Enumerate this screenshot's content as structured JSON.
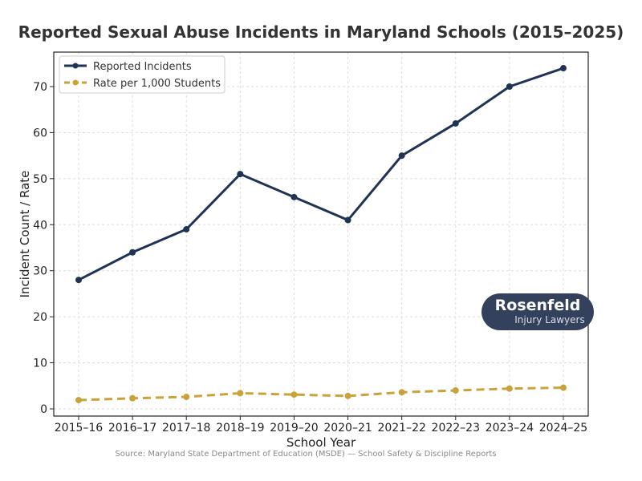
{
  "chart_data": {
    "type": "line",
    "title": "Reported Sexual Abuse Incidents in Maryland Schools (2015–2025)",
    "xlabel": "School Year",
    "ylabel": "Incident Count / Rate",
    "categories": [
      "2015–16",
      "2016–17",
      "2017–18",
      "2018–19",
      "2019–20",
      "2020–21",
      "2021–22",
      "2022–23",
      "2023–24",
      "2024–25"
    ],
    "series": [
      {
        "name": "Reported Incidents",
        "values": [
          28,
          34,
          39,
          51,
          46,
          41,
          55,
          62,
          70,
          74
        ],
        "color": "#1f3354",
        "style": "solid"
      },
      {
        "name": "Rate per 1,000 Students",
        "values": [
          1.9,
          2.3,
          2.6,
          3.4,
          3.1,
          2.8,
          3.6,
          4.0,
          4.4,
          4.6
        ],
        "color": "#c9a23a",
        "style": "dashed"
      }
    ],
    "ylim": [
      -1.5,
      78
    ],
    "yticks": [
      0,
      10,
      20,
      30,
      40,
      50,
      60,
      70
    ],
    "grid": true,
    "legend": "top-left",
    "source": "Source: Maryland State Department of Education (MSDE) — School Safety & Discipline Reports"
  },
  "logo": {
    "name": "Rosenfeld",
    "subtitle": "Injury Lawyers"
  }
}
